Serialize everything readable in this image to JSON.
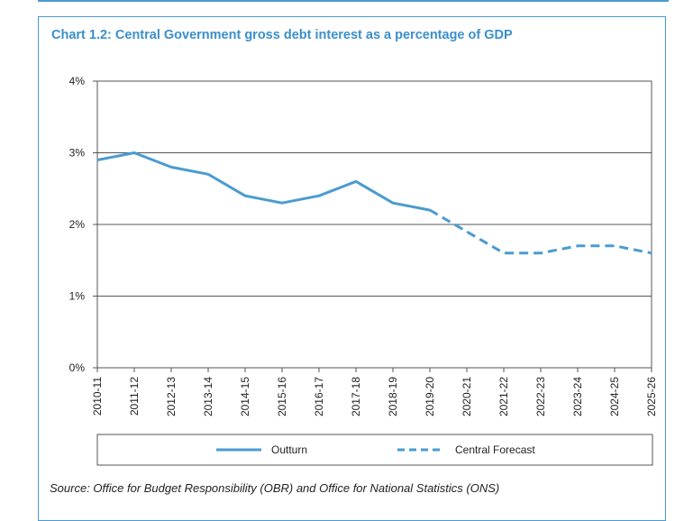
{
  "chart_data": {
    "type": "line",
    "title": "Chart 1.2: Central Government gross debt interest as a percentage of GDP",
    "source": "Source: Office for Budget Responsibility (OBR) and Office for National Statistics (ONS)",
    "categories": [
      "2010-11",
      "2011-12",
      "2012-13",
      "2013-14",
      "2014-15",
      "2015-16",
      "2016-17",
      "2017-18",
      "2018-19",
      "2019-20",
      "2020-21",
      "2021-22",
      "2022-23",
      "2023-24",
      "2024-25",
      "2025-26"
    ],
    "y_ticks": [
      "0%",
      "1%",
      "2%",
      "3%",
      "4%"
    ],
    "ylim": [
      0,
      4
    ],
    "grid": true,
    "legend_position": "bottom",
    "series": [
      {
        "name": "Outturn",
        "style": "solid",
        "color": "#4a9bd1",
        "values": [
          2.9,
          3.0,
          2.8,
          2.7,
          2.4,
          2.3,
          2.4,
          2.6,
          2.3,
          2.2,
          null,
          null,
          null,
          null,
          null,
          null
        ]
      },
      {
        "name": "Central Forecast",
        "style": "dashed",
        "color": "#4a9bd1",
        "values": [
          null,
          null,
          null,
          null,
          null,
          null,
          null,
          null,
          null,
          2.2,
          1.9,
          1.6,
          1.6,
          1.7,
          1.7,
          1.6
        ]
      }
    ]
  }
}
